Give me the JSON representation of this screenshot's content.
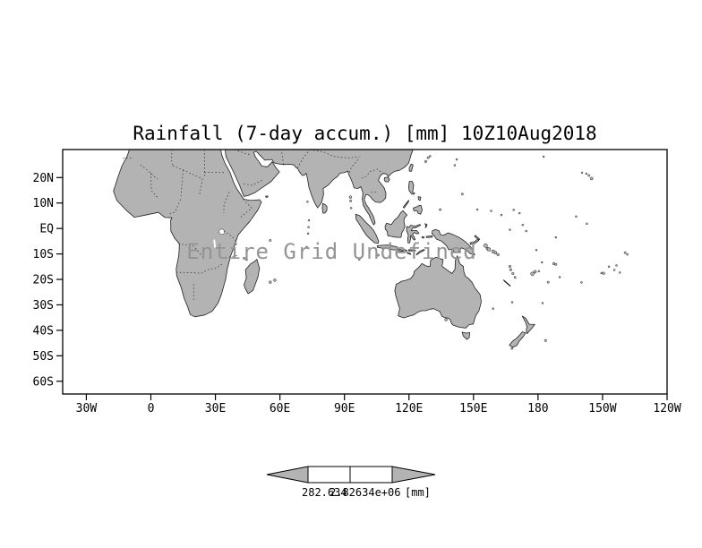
{
  "figure": {
    "background": "#ffffff"
  },
  "chart_data": {
    "type": "heatmap",
    "title": "Rainfall (7-day accum.) [mm] 10Z10Aug2018",
    "status_message": "Entire Grid Undefined",
    "x_axis": {
      "tick_labels": [
        "30W",
        "0",
        "30E",
        "60E",
        "90E",
        "120E",
        "150E",
        "180",
        "150W",
        "120W"
      ],
      "tick_lons": [
        -30,
        0,
        30,
        60,
        90,
        120,
        150,
        180,
        210,
        240
      ],
      "lon_range": [
        -41,
        240
      ]
    },
    "y_axis": {
      "tick_labels": [
        "20N",
        "10N",
        "EQ",
        "10S",
        "20S",
        "30S",
        "40S",
        "50S",
        "60S"
      ],
      "tick_lats": [
        20,
        10,
        0,
        -10,
        -20,
        -30,
        -40,
        -50,
        -60
      ],
      "lat_range": [
        31,
        -65
      ]
    },
    "grid": "none",
    "data_values": "entire grid undefined - no rainfall values plotted",
    "colorbar": {
      "label_left": "282.634",
      "label_right": "2.82634e+06",
      "units_label": "[mm]",
      "arrow_fill": "#b3b3b3",
      "cell_fill": "#ffffff"
    },
    "land_color": "#b3b3b3",
    "coast_color": "#222222",
    "ocean_color": "#ffffff"
  }
}
